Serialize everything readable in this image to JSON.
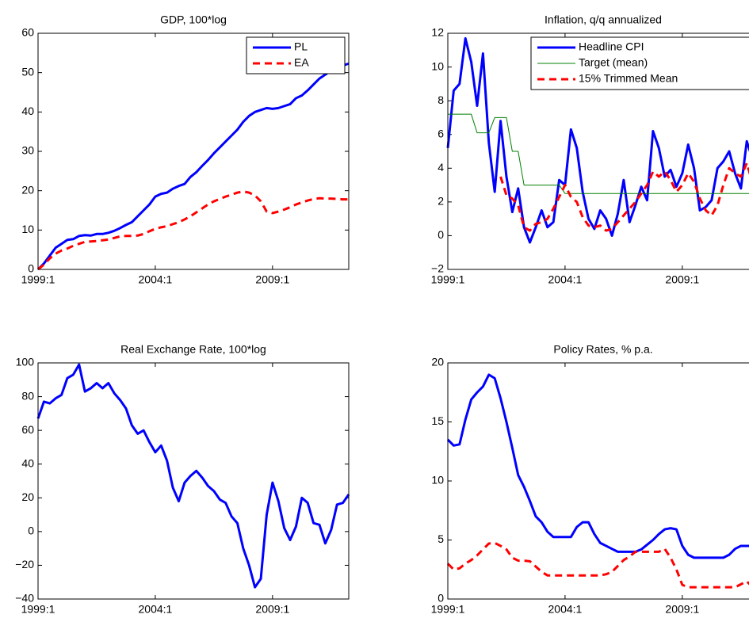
{
  "chart_data": [
    {
      "type": "line",
      "title": "GDP, 100*log",
      "legend": "upper right",
      "categories": [
        "1999:1",
        null,
        null,
        null,
        null,
        null,
        null,
        null,
        null,
        null,
        null,
        null,
        null,
        null,
        null,
        null,
        null,
        null,
        null,
        null,
        "2004:1",
        null,
        null,
        null,
        null,
        null,
        null,
        null,
        null,
        null,
        null,
        null,
        null,
        null,
        null,
        null,
        null,
        null,
        null,
        null,
        "2009:1",
        null,
        null,
        null,
        null,
        null,
        null,
        null,
        null,
        null,
        null,
        null,
        null,
        null
      ],
      "ylim": [
        0,
        60
      ],
      "yticks": [
        0,
        10,
        20,
        30,
        40,
        50,
        60
      ],
      "series": [
        {
          "name": "PL",
          "color": "#0000ff",
          "width": 3,
          "dash": false,
          "values": [
            0,
            1.5,
            3.5,
            5.5,
            6.5,
            7.5,
            7.7,
            8.5,
            8.7,
            8.6,
            9,
            9,
            9.3,
            9.8,
            10.5,
            11.3,
            12,
            13.5,
            15,
            16.5,
            18.5,
            19.2,
            19.5,
            20.5,
            21.2,
            21.7,
            23.5,
            24.7,
            26.3,
            27.8,
            29.5,
            31,
            32.5,
            34,
            35.5,
            37.5,
            39,
            40,
            40.5,
            41,
            40.8,
            41,
            41.5,
            42,
            43.5,
            44.2,
            45.5,
            47,
            48.5,
            49.5,
            50.5,
            51,
            51.8,
            52.3
          ]
        },
        {
          "name": "EA",
          "color": "#ff0000",
          "width": 3,
          "dash": true,
          "values": [
            0,
            1.2,
            2.8,
            4,
            4.8,
            5.3,
            6,
            6.5,
            7,
            7.1,
            7.2,
            7.4,
            7.6,
            8,
            8.4,
            8.5,
            8.5,
            8.6,
            9,
            9.7,
            10.3,
            10.7,
            11,
            11.5,
            12,
            12.7,
            13.5,
            14.5,
            15.5,
            16.5,
            17.3,
            17.9,
            18.5,
            19,
            19.5,
            19.8,
            19.5,
            18.8,
            17.3,
            14.7,
            14.3,
            14.7,
            15.2,
            15.8,
            16.5,
            17,
            17.5,
            17.9,
            18.1,
            18,
            18,
            17.9,
            17.8,
            17.8
          ]
        }
      ]
    },
    {
      "type": "line",
      "title": "Inflation, q/q annualized",
      "legend": "upper right",
      "categories": [
        "1999:1",
        null,
        null,
        null,
        null,
        null,
        null,
        null,
        null,
        null,
        null,
        null,
        null,
        null,
        null,
        null,
        null,
        null,
        null,
        null,
        "2004:1",
        null,
        null,
        null,
        null,
        null,
        null,
        null,
        null,
        null,
        null,
        null,
        null,
        null,
        null,
        null,
        null,
        null,
        null,
        null,
        "2009:1",
        null,
        null,
        null,
        null,
        null,
        null,
        null,
        null,
        null,
        null,
        null,
        null,
        null
      ],
      "ylim": [
        -2,
        12
      ],
      "yticks": [
        {
          "value": -2,
          "label": "−2"
        },
        0,
        2,
        4,
        6,
        8,
        10,
        12
      ],
      "series": [
        {
          "name": "Headline CPI",
          "color": "#0000ff",
          "width": 3,
          "dash": false,
          "values": [
            5.2,
            8.6,
            9,
            11.7,
            10.3,
            7.7,
            10.8,
            5.5,
            2.6,
            6.8,
            3.5,
            1.4,
            2.8,
            0.5,
            -0.4,
            0.5,
            1.5,
            0.5,
            0.8,
            3.3,
            3,
            6.3,
            5.2,
            2.6,
            1,
            0.4,
            1.5,
            1,
            0,
            1.3,
            3.3,
            0.8,
            1.8,
            2.9,
            2.1,
            6.2,
            5.2,
            3.5,
            3.9,
            2.9,
            3.7,
            5.4,
            4,
            1.5,
            1.7,
            2.1,
            4,
            4.4,
            5,
            3.7,
            2.8,
            5.6,
            4.5,
            4.3
          ]
        },
        {
          "name": "Target (mean)",
          "color": "#008000",
          "width": 1,
          "dash": false,
          "values": [
            7.2,
            7.2,
            7.2,
            7.2,
            7.2,
            6.1,
            6.1,
            6.1,
            7,
            7,
            7,
            5,
            5,
            3,
            3,
            3,
            3,
            3,
            3,
            3,
            2.5,
            2.5,
            2.5,
            2.5,
            2.5,
            2.5,
            2.5,
            2.5,
            2.5,
            2.5,
            2.5,
            2.5,
            2.5,
            2.5,
            2.5,
            2.5,
            2.5,
            2.5,
            2.5,
            2.5,
            2.5,
            2.5,
            2.5,
            2.5,
            2.5,
            2.5,
            2.5,
            2.5,
            2.5,
            2.5,
            2.5,
            2.5,
            2.5,
            2.5
          ]
        },
        {
          "name": "15% Trimmed Mean",
          "color": "#ff0000",
          "width": 3,
          "dash": true,
          "values": [
            null,
            null,
            null,
            null,
            null,
            null,
            null,
            null,
            null,
            3.5,
            2.4,
            2.2,
            1.8,
            0.5,
            0.3,
            0.7,
            0.8,
            1,
            1.6,
            2.3,
            3,
            2.3,
            2,
            1.1,
            0.6,
            0.5,
            0.6,
            0.3,
            0.4,
            0.8,
            1.2,
            1.6,
            2,
            2.5,
            3,
            3.8,
            3.5,
            3.8,
            3.3,
            2.6,
            3,
            3.7,
            3.2,
            2.2,
            1.5,
            1.2,
            1.8,
            3,
            4,
            3.7,
            3.5,
            4.3,
            3.1,
            3
          ]
        }
      ]
    },
    {
      "type": "line",
      "title": "Real Exchange Rate, 100*log",
      "categories": [
        "1999:1",
        null,
        null,
        null,
        null,
        null,
        null,
        null,
        null,
        null,
        null,
        null,
        null,
        null,
        null,
        null,
        null,
        null,
        null,
        null,
        "2004:1",
        null,
        null,
        null,
        null,
        null,
        null,
        null,
        null,
        null,
        null,
        null,
        null,
        null,
        null,
        null,
        null,
        null,
        null,
        null,
        "2009:1",
        null,
        null,
        null,
        null,
        null,
        null,
        null,
        null,
        null,
        null,
        null,
        null,
        null
      ],
      "ylim": [
        -40,
        100
      ],
      "yticks": [
        {
          "value": -40,
          "label": "−40"
        },
        {
          "value": -20,
          "label": "−20"
        },
        0,
        20,
        40,
        60,
        80,
        100
      ],
      "series": [
        {
          "color": "#0000ff",
          "width": 3,
          "dash": false,
          "values": [
            67,
            77,
            76,
            79,
            81,
            91,
            93,
            99,
            83,
            85,
            88,
            85,
            88,
            82,
            78,
            73,
            63,
            58,
            60,
            53,
            47,
            51,
            42,
            26,
            18,
            29,
            33,
            36,
            32,
            27,
            24,
            19,
            17,
            9,
            5,
            -10,
            -20,
            -33,
            -28,
            10,
            29,
            18,
            2,
            -5,
            3,
            20,
            17,
            5,
            4,
            -7,
            1,
            16,
            17,
            22
          ]
        }
      ]
    },
    {
      "type": "line",
      "title": "Policy Rates, % p.a.",
      "categories": [
        "1999:1",
        null,
        null,
        null,
        null,
        null,
        null,
        null,
        null,
        null,
        null,
        null,
        null,
        null,
        null,
        null,
        null,
        null,
        null,
        null,
        "2004:1",
        null,
        null,
        null,
        null,
        null,
        null,
        null,
        null,
        null,
        null,
        null,
        null,
        null,
        null,
        null,
        null,
        null,
        null,
        null,
        "2009:1",
        null,
        null,
        null,
        null,
        null,
        null,
        null,
        null,
        null,
        null,
        null,
        null,
        null
      ],
      "ylim": [
        0,
        20
      ],
      "yticks": [
        0,
        5,
        10,
        15,
        20
      ],
      "series": [
        {
          "color": "#0000ff",
          "width": 3,
          "dash": false,
          "values": [
            13.5,
            13,
            13.1,
            15.2,
            16.9,
            17.5,
            18,
            19,
            18.7,
            17,
            15,
            12.8,
            10.5,
            9.5,
            8.3,
            7,
            6.5,
            5.7,
            5.25,
            5.25,
            5.25,
            5.25,
            6.1,
            6.5,
            6.5,
            5.5,
            4.75,
            4.5,
            4.25,
            4,
            4,
            4,
            4,
            4.2,
            4.6,
            5,
            5.5,
            5.9,
            6,
            5.9,
            4.5,
            3.75,
            3.5,
            3.5,
            3.5,
            3.5,
            3.5,
            3.5,
            3.75,
            4.25,
            4.5,
            4.5,
            4.5,
            4.5
          ]
        },
        {
          "color": "#ff0000",
          "width": 3,
          "dash": true,
          "values": [
            3,
            2.5,
            2.6,
            3,
            3.3,
            3.7,
            4.2,
            4.7,
            4.75,
            4.5,
            4.2,
            3.5,
            3.25,
            3.25,
            3.2,
            2.75,
            2.3,
            2,
            2,
            2,
            2,
            2,
            2,
            2,
            2,
            2,
            2,
            2.1,
            2.3,
            2.8,
            3.3,
            3.6,
            4,
            4,
            4,
            4,
            4,
            4.25,
            3.5,
            2.5,
            1.2,
            1,
            1,
            1,
            1,
            1,
            1,
            1,
            1,
            1,
            1.25,
            1.5,
            1,
            1
          ]
        }
      ]
    }
  ]
}
